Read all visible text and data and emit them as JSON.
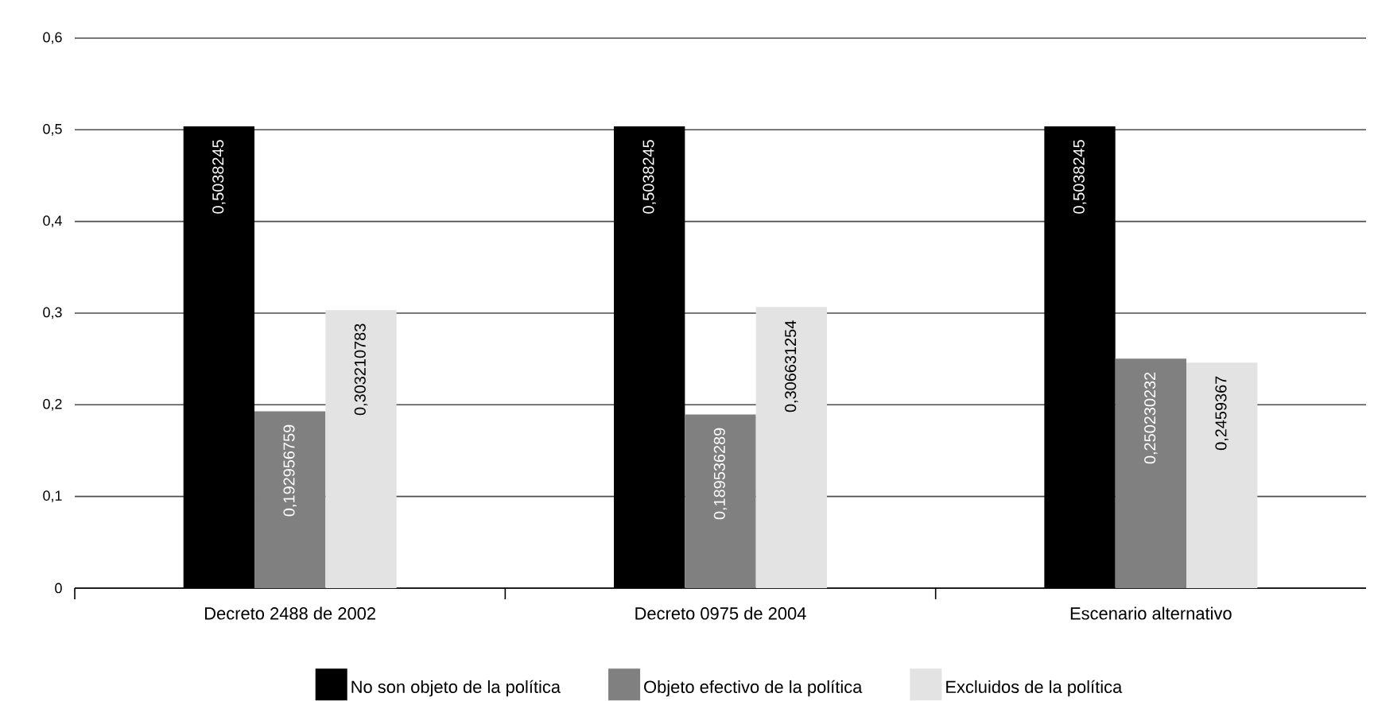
{
  "chart_data": {
    "type": "bar",
    "categories": [
      "Decreto 2488 de 2002",
      "Decreto 0975 de 2004",
      "Escenario alternativo"
    ],
    "series": [
      {
        "name": "No son objeto de la política",
        "color": "#000000",
        "values": [
          0.5038245,
          0.5038245,
          0.5038245
        ],
        "value_labels": [
          "0,5038245",
          "0,5038245",
          "0,5038245"
        ]
      },
      {
        "name": "Objeto efectivo de la política",
        "color": "#808080",
        "values": [
          0.192956759,
          0.189536289,
          0.250230232
        ],
        "value_labels": [
          "0,192956759",
          "0,189536289",
          "0,250230232"
        ]
      },
      {
        "name": "Excluidos de la política",
        "color": "#e3e3e3",
        "values": [
          0.303210783,
          0.306631254,
          0.2459367
        ],
        "value_labels": [
          "0,303210783",
          "0,306631254",
          "0,2459367"
        ]
      }
    ],
    "ylim": [
      0,
      0.6
    ],
    "yticks": [
      0,
      {
        "value": 0.1,
        "label": "0,1"
      },
      {
        "value": 0.2,
        "label": "0,2"
      },
      {
        "value": 0.3,
        "label": "0,3"
      },
      {
        "value": 0.4,
        "label": "0,4"
      },
      {
        "value": 0.5,
        "label": "0,5"
      },
      {
        "value": 0.6,
        "label": "0,6"
      }
    ],
    "grid": "y",
    "legend": "bottom"
  }
}
